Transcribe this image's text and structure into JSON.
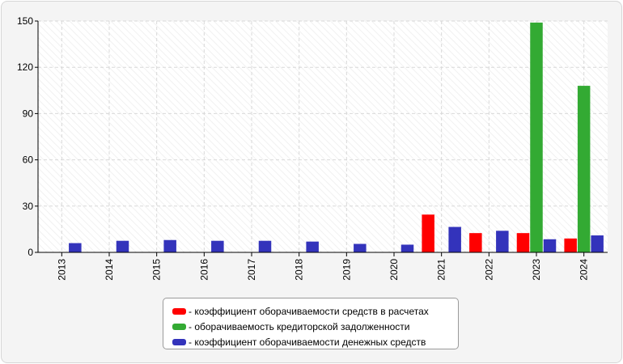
{
  "chart_data": {
    "type": "bar",
    "categories": [
      "2013",
      "2014",
      "2015",
      "2016",
      "2017",
      "2018",
      "2019",
      "2020",
      "2021",
      "2022",
      "2023",
      "2024"
    ],
    "series": [
      {
        "name": "- коэффициент оборачиваемости средств в расчетах",
        "color": "#ff0000",
        "values": [
          null,
          null,
          null,
          null,
          null,
          null,
          null,
          null,
          24.5,
          12.5,
          12.5,
          9
        ]
      },
      {
        "name": "- оборачиваемость кредиторской задолженности",
        "color": "#33aa33",
        "values": [
          null,
          null,
          null,
          null,
          null,
          null,
          null,
          null,
          null,
          null,
          149,
          108
        ]
      },
      {
        "name": "- коэффициент оборачиваемости денежных средств",
        "color": "#3333bb",
        "values": [
          6,
          7.5,
          8,
          7.5,
          7.5,
          7,
          5.5,
          5,
          16.5,
          14,
          8.5,
          11
        ]
      }
    ],
    "ylim": [
      0,
      150
    ],
    "yticks": [
      "0",
      "30",
      "60",
      "90",
      "120",
      "150"
    ],
    "ytick_values": [
      0,
      30,
      60,
      90,
      120,
      150
    ],
    "grid": true,
    "legend_position": "bottom-center"
  }
}
